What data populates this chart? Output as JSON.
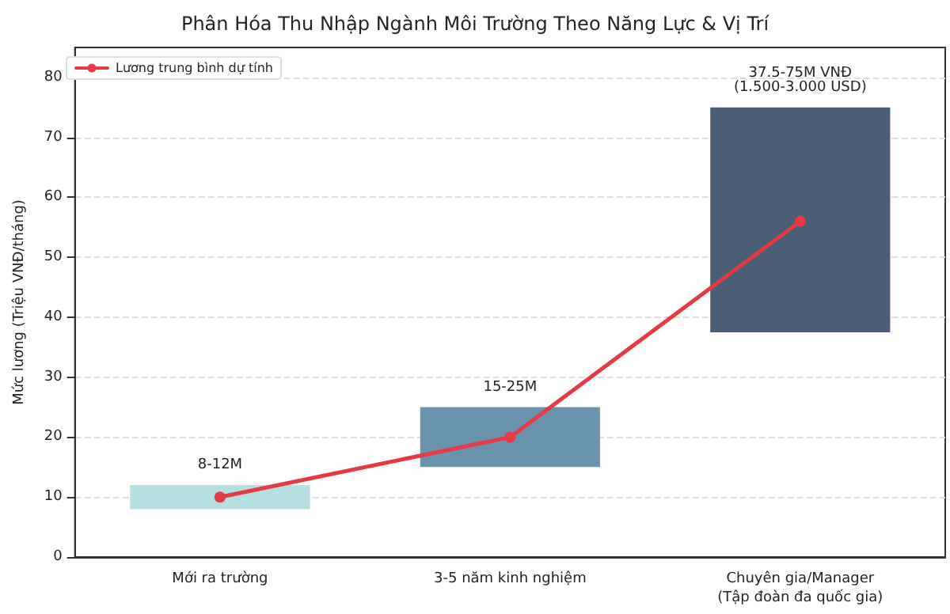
{
  "chart_data": {
    "type": "bar",
    "title": "Phân Hóa Thu Nhập Ngành Môi Trường Theo Năng Lực & Vị Trí",
    "ylabel": "Mức lương (Triệu VNĐ/tháng)",
    "categories": [
      "Mới ra trường",
      "3-5 năm kinh nghiệm",
      "Chuyên gia/Manager\n(Tập đoàn đa quốc gia)"
    ],
    "series": [
      {
        "base": [
          8,
          15,
          37.5
        ],
        "values": [
          4,
          10,
          37.5
        ],
        "colors": [
          "#b3dfe0",
          "#6a93b0",
          "#4b5e78"
        ],
        "value_labels": [
          "8-12M",
          "15-25M",
          "37.5-75M VNĐ\n(1.500-3.000 USD)"
        ]
      },
      {
        "type": "line",
        "name": "Lương trung bình dự tính",
        "color": "#e63946",
        "values": [
          10,
          20,
          56
        ],
        "marker": "circle",
        "line_style": "solid"
      }
    ],
    "ylim": [
      0,
      85
    ],
    "yticks": [
      0,
      10,
      20,
      30,
      40,
      50,
      60,
      70,
      80
    ],
    "grid": "y",
    "legend": "top left"
  }
}
